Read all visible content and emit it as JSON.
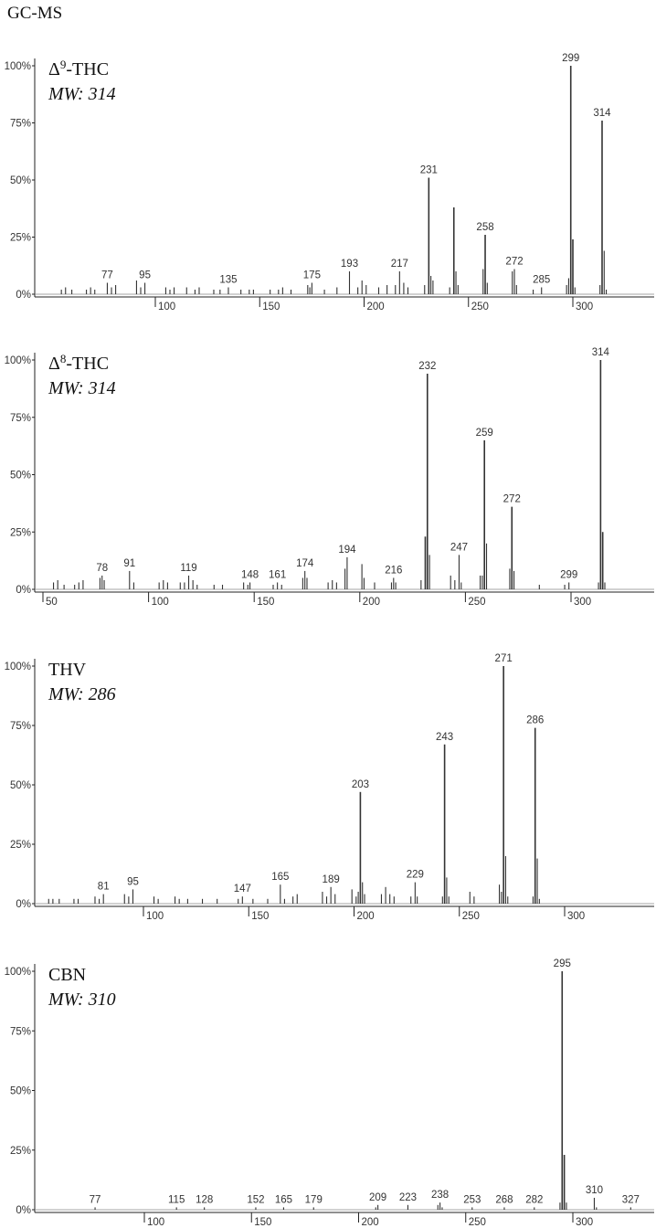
{
  "figure": {
    "title": "GC-MS"
  },
  "chart_data": [
    {
      "type": "bar",
      "compound": "Δ",
      "compound_sup": "9",
      "compound_rest": "-THC",
      "mw_label": "MW: 314",
      "ylim": [
        0,
        100
      ],
      "xlim": [
        40,
        340
      ],
      "y_ticks": [
        "0%",
        "25%",
        "50%",
        "75%",
        "100%"
      ],
      "x_ticks": [
        100,
        150,
        200,
        250,
        300
      ],
      "peaks": [
        {
          "mz": 55,
          "rel": 2
        },
        {
          "mz": 57,
          "rel": 3
        },
        {
          "mz": 60,
          "rel": 2
        },
        {
          "mz": 67,
          "rel": 2
        },
        {
          "mz": 69,
          "rel": 3
        },
        {
          "mz": 71,
          "rel": 2
        },
        {
          "mz": 77,
          "rel": 5
        },
        {
          "mz": 79,
          "rel": 3
        },
        {
          "mz": 81,
          "rel": 4
        },
        {
          "mz": 91,
          "rel": 6
        },
        {
          "mz": 93,
          "rel": 3
        },
        {
          "mz": 95,
          "rel": 5
        },
        {
          "mz": 105,
          "rel": 3
        },
        {
          "mz": 107,
          "rel": 2
        },
        {
          "mz": 109,
          "rel": 3
        },
        {
          "mz": 115,
          "rel": 3
        },
        {
          "mz": 119,
          "rel": 2
        },
        {
          "mz": 121,
          "rel": 3
        },
        {
          "mz": 128,
          "rel": 2
        },
        {
          "mz": 131,
          "rel": 2
        },
        {
          "mz": 135,
          "rel": 3
        },
        {
          "mz": 141,
          "rel": 2
        },
        {
          "mz": 145,
          "rel": 2
        },
        {
          "mz": 147,
          "rel": 2
        },
        {
          "mz": 155,
          "rel": 2
        },
        {
          "mz": 159,
          "rel": 2
        },
        {
          "mz": 161,
          "rel": 3
        },
        {
          "mz": 165,
          "rel": 2
        },
        {
          "mz": 173,
          "rel": 4
        },
        {
          "mz": 174,
          "rel": 3
        },
        {
          "mz": 175,
          "rel": 5
        },
        {
          "mz": 181,
          "rel": 2
        },
        {
          "mz": 187,
          "rel": 3
        },
        {
          "mz": 193,
          "rel": 10
        },
        {
          "mz": 197,
          "rel": 3
        },
        {
          "mz": 199,
          "rel": 6
        },
        {
          "mz": 201,
          "rel": 4
        },
        {
          "mz": 207,
          "rel": 3
        },
        {
          "mz": 211,
          "rel": 4
        },
        {
          "mz": 215,
          "rel": 4
        },
        {
          "mz": 217,
          "rel": 10
        },
        {
          "mz": 219,
          "rel": 5
        },
        {
          "mz": 221,
          "rel": 3
        },
        {
          "mz": 229,
          "rel": 4
        },
        {
          "mz": 231,
          "rel": 51
        },
        {
          "mz": 232,
          "rel": 8
        },
        {
          "mz": 233,
          "rel": 6
        },
        {
          "mz": 241,
          "rel": 3
        },
        {
          "mz": 243,
          "rel": 38
        },
        {
          "mz": 244,
          "rel": 10
        },
        {
          "mz": 245,
          "rel": 4
        },
        {
          "mz": 257,
          "rel": 11
        },
        {
          "mz": 258,
          "rel": 26
        },
        {
          "mz": 259,
          "rel": 5
        },
        {
          "mz": 271,
          "rel": 10
        },
        {
          "mz": 272,
          "rel": 11
        },
        {
          "mz": 273,
          "rel": 4
        },
        {
          "mz": 281,
          "rel": 2
        },
        {
          "mz": 285,
          "rel": 3
        },
        {
          "mz": 297,
          "rel": 4
        },
        {
          "mz": 298,
          "rel": 7
        },
        {
          "mz": 299,
          "rel": 100
        },
        {
          "mz": 300,
          "rel": 24
        },
        {
          "mz": 301,
          "rel": 3
        },
        {
          "mz": 313,
          "rel": 4
        },
        {
          "mz": 314,
          "rel": 76
        },
        {
          "mz": 315,
          "rel": 19
        },
        {
          "mz": 316,
          "rel": 2
        }
      ],
      "peak_labels": [
        {
          "mz": 77,
          "rel": 5,
          "text": "77"
        },
        {
          "mz": 95,
          "rel": 5,
          "text": "95"
        },
        {
          "mz": 135,
          "rel": 3,
          "text": "135"
        },
        {
          "mz": 175,
          "rel": 5,
          "text": "175"
        },
        {
          "mz": 193,
          "rel": 10,
          "text": "193"
        },
        {
          "mz": 217,
          "rel": 10,
          "text": "217"
        },
        {
          "mz": 231,
          "rel": 51,
          "text": "231"
        },
        {
          "mz": 258,
          "rel": 26,
          "text": "258"
        },
        {
          "mz": 272,
          "rel": 11,
          "text": "272"
        },
        {
          "mz": 285,
          "rel": 3,
          "text": "285"
        },
        {
          "mz": 299,
          "rel": 100,
          "text": "299"
        },
        {
          "mz": 314,
          "rel": 76,
          "text": "314"
        }
      ]
    },
    {
      "type": "bar",
      "compound": "Δ",
      "compound_sup": "8",
      "compound_rest": "-THC",
      "mw_label": "MW: 314",
      "ylim": [
        0,
        100
      ],
      "xlim": [
        45,
        340
      ],
      "y_ticks": [
        "0%",
        "25%",
        "50%",
        "75%",
        "100%"
      ],
      "x_ticks": [
        50,
        100,
        150,
        200,
        250,
        300
      ],
      "peaks": [
        {
          "mz": 55,
          "rel": 3
        },
        {
          "mz": 57,
          "rel": 4
        },
        {
          "mz": 60,
          "rel": 2
        },
        {
          "mz": 65,
          "rel": 2
        },
        {
          "mz": 67,
          "rel": 3
        },
        {
          "mz": 69,
          "rel": 4
        },
        {
          "mz": 77,
          "rel": 5
        },
        {
          "mz": 78,
          "rel": 6
        },
        {
          "mz": 79,
          "rel": 4
        },
        {
          "mz": 91,
          "rel": 8
        },
        {
          "mz": 93,
          "rel": 3
        },
        {
          "mz": 105,
          "rel": 3
        },
        {
          "mz": 107,
          "rel": 4
        },
        {
          "mz": 109,
          "rel": 3
        },
        {
          "mz": 115,
          "rel": 3
        },
        {
          "mz": 117,
          "rel": 3
        },
        {
          "mz": 119,
          "rel": 6
        },
        {
          "mz": 121,
          "rel": 4
        },
        {
          "mz": 123,
          "rel": 2
        },
        {
          "mz": 131,
          "rel": 2
        },
        {
          "mz": 135,
          "rel": 2
        },
        {
          "mz": 145,
          "rel": 3
        },
        {
          "mz": 147,
          "rel": 2
        },
        {
          "mz": 148,
          "rel": 3
        },
        {
          "mz": 159,
          "rel": 2
        },
        {
          "mz": 161,
          "rel": 3
        },
        {
          "mz": 163,
          "rel": 2
        },
        {
          "mz": 173,
          "rel": 5
        },
        {
          "mz": 174,
          "rel": 8
        },
        {
          "mz": 175,
          "rel": 5
        },
        {
          "mz": 185,
          "rel": 3
        },
        {
          "mz": 187,
          "rel": 4
        },
        {
          "mz": 189,
          "rel": 3
        },
        {
          "mz": 193,
          "rel": 9
        },
        {
          "mz": 194,
          "rel": 14
        },
        {
          "mz": 201,
          "rel": 11
        },
        {
          "mz": 202,
          "rel": 5
        },
        {
          "mz": 207,
          "rel": 3
        },
        {
          "mz": 215,
          "rel": 3
        },
        {
          "mz": 216,
          "rel": 5
        },
        {
          "mz": 217,
          "rel": 3
        },
        {
          "mz": 229,
          "rel": 4
        },
        {
          "mz": 231,
          "rel": 23
        },
        {
          "mz": 232,
          "rel": 94
        },
        {
          "mz": 233,
          "rel": 15
        },
        {
          "mz": 243,
          "rel": 6
        },
        {
          "mz": 245,
          "rel": 4
        },
        {
          "mz": 247,
          "rel": 15
        },
        {
          "mz": 248,
          "rel": 3
        },
        {
          "mz": 257,
          "rel": 6
        },
        {
          "mz": 258,
          "rel": 6
        },
        {
          "mz": 259,
          "rel": 65
        },
        {
          "mz": 260,
          "rel": 20
        },
        {
          "mz": 271,
          "rel": 9
        },
        {
          "mz": 272,
          "rel": 36
        },
        {
          "mz": 273,
          "rel": 8
        },
        {
          "mz": 285,
          "rel": 2
        },
        {
          "mz": 297,
          "rel": 2
        },
        {
          "mz": 299,
          "rel": 3
        },
        {
          "mz": 313,
          "rel": 3
        },
        {
          "mz": 314,
          "rel": 100
        },
        {
          "mz": 315,
          "rel": 25
        },
        {
          "mz": 316,
          "rel": 3
        }
      ],
      "peak_labels": [
        {
          "mz": 78,
          "rel": 6,
          "text": "78"
        },
        {
          "mz": 91,
          "rel": 8,
          "text": "91"
        },
        {
          "mz": 119,
          "rel": 6,
          "text": "119"
        },
        {
          "mz": 148,
          "rel": 3,
          "text": "148"
        },
        {
          "mz": 161,
          "rel": 3,
          "text": "161"
        },
        {
          "mz": 174,
          "rel": 8,
          "text": "174"
        },
        {
          "mz": 194,
          "rel": 14,
          "text": "194"
        },
        {
          "mz": 216,
          "rel": 5,
          "text": "216"
        },
        {
          "mz": 232,
          "rel": 94,
          "text": "232"
        },
        {
          "mz": 247,
          "rel": 15,
          "text": "247"
        },
        {
          "mz": 259,
          "rel": 65,
          "text": "259"
        },
        {
          "mz": 272,
          "rel": 36,
          "text": "272"
        },
        {
          "mz": 299,
          "rel": 3,
          "text": "299"
        },
        {
          "mz": 314,
          "rel": 100,
          "text": "314"
        }
      ]
    },
    {
      "type": "bar",
      "compound": "THV",
      "compound_sup": "",
      "compound_rest": "",
      "mw_label": "MW: 286",
      "ylim": [
        0,
        100
      ],
      "xlim": [
        40,
        340
      ],
      "y_ticks": [
        "0%",
        "25%",
        "50%",
        "75%",
        "100%"
      ],
      "x_ticks": [
        100,
        150,
        200,
        250,
        300
      ],
      "peaks": [
        {
          "mz": 55,
          "rel": 2
        },
        {
          "mz": 57,
          "rel": 2
        },
        {
          "mz": 60,
          "rel": 2
        },
        {
          "mz": 67,
          "rel": 2
        },
        {
          "mz": 69,
          "rel": 2
        },
        {
          "mz": 77,
          "rel": 3
        },
        {
          "mz": 79,
          "rel": 2
        },
        {
          "mz": 81,
          "rel": 4
        },
        {
          "mz": 91,
          "rel": 4
        },
        {
          "mz": 93,
          "rel": 3
        },
        {
          "mz": 95,
          "rel": 6
        },
        {
          "mz": 105,
          "rel": 3
        },
        {
          "mz": 107,
          "rel": 2
        },
        {
          "mz": 115,
          "rel": 3
        },
        {
          "mz": 117,
          "rel": 2
        },
        {
          "mz": 121,
          "rel": 2
        },
        {
          "mz": 128,
          "rel": 2
        },
        {
          "mz": 135,
          "rel": 2
        },
        {
          "mz": 145,
          "rel": 2
        },
        {
          "mz": 147,
          "rel": 3
        },
        {
          "mz": 152,
          "rel": 2
        },
        {
          "mz": 159,
          "rel": 2
        },
        {
          "mz": 165,
          "rel": 8
        },
        {
          "mz": 167,
          "rel": 2
        },
        {
          "mz": 171,
          "rel": 3
        },
        {
          "mz": 173,
          "rel": 4
        },
        {
          "mz": 185,
          "rel": 5
        },
        {
          "mz": 187,
          "rel": 3
        },
        {
          "mz": 189,
          "rel": 7
        },
        {
          "mz": 191,
          "rel": 4
        },
        {
          "mz": 199,
          "rel": 6
        },
        {
          "mz": 201,
          "rel": 3
        },
        {
          "mz": 202,
          "rel": 5
        },
        {
          "mz": 203,
          "rel": 47
        },
        {
          "mz": 204,
          "rel": 9
        },
        {
          "mz": 205,
          "rel": 4
        },
        {
          "mz": 213,
          "rel": 4
        },
        {
          "mz": 215,
          "rel": 7
        },
        {
          "mz": 217,
          "rel": 4
        },
        {
          "mz": 219,
          "rel": 3
        },
        {
          "mz": 227,
          "rel": 3
        },
        {
          "mz": 229,
          "rel": 9
        },
        {
          "mz": 230,
          "rel": 3
        },
        {
          "mz": 242,
          "rel": 3
        },
        {
          "mz": 243,
          "rel": 67
        },
        {
          "mz": 244,
          "rel": 11
        },
        {
          "mz": 245,
          "rel": 3
        },
        {
          "mz": 255,
          "rel": 5
        },
        {
          "mz": 257,
          "rel": 3
        },
        {
          "mz": 269,
          "rel": 8
        },
        {
          "mz": 270,
          "rel": 5
        },
        {
          "mz": 271,
          "rel": 100
        },
        {
          "mz": 272,
          "rel": 20
        },
        {
          "mz": 273,
          "rel": 3
        },
        {
          "mz": 285,
          "rel": 3
        },
        {
          "mz": 286,
          "rel": 74
        },
        {
          "mz": 287,
          "rel": 19
        },
        {
          "mz": 288,
          "rel": 2
        }
      ],
      "peak_labels": [
        {
          "mz": 81,
          "rel": 4,
          "text": "81"
        },
        {
          "mz": 95,
          "rel": 6,
          "text": "95"
        },
        {
          "mz": 147,
          "rel": 3,
          "text": "147"
        },
        {
          "mz": 165,
          "rel": 8,
          "text": "165"
        },
        {
          "mz": 189,
          "rel": 7,
          "text": "189"
        },
        {
          "mz": 203,
          "rel": 47,
          "text": "203"
        },
        {
          "mz": 229,
          "rel": 9,
          "text": "229"
        },
        {
          "mz": 243,
          "rel": 67,
          "text": "243"
        },
        {
          "mz": 271,
          "rel": 100,
          "text": "271"
        },
        {
          "mz": 286,
          "rel": 74,
          "text": "286"
        }
      ]
    },
    {
      "type": "bar",
      "compound": "CBN",
      "compound_sup": "",
      "compound_rest": "",
      "mw_label": "MW: 310",
      "ylim": [
        0,
        100
      ],
      "xlim": [
        40,
        340
      ],
      "y_ticks": [
        "0%",
        "25%",
        "50%",
        "75%",
        "100%"
      ],
      "x_ticks": [
        100,
        150,
        200,
        250,
        300
      ],
      "peaks": [
        {
          "mz": 77,
          "rel": 1
        },
        {
          "mz": 115,
          "rel": 1
        },
        {
          "mz": 128,
          "rel": 1
        },
        {
          "mz": 152,
          "rel": 1
        },
        {
          "mz": 165,
          "rel": 1
        },
        {
          "mz": 179,
          "rel": 1
        },
        {
          "mz": 208,
          "rel": 1
        },
        {
          "mz": 209,
          "rel": 2
        },
        {
          "mz": 223,
          "rel": 2
        },
        {
          "mz": 237,
          "rel": 2
        },
        {
          "mz": 238,
          "rel": 3
        },
        {
          "mz": 239,
          "rel": 1
        },
        {
          "mz": 253,
          "rel": 1
        },
        {
          "mz": 268,
          "rel": 1
        },
        {
          "mz": 282,
          "rel": 1
        },
        {
          "mz": 294,
          "rel": 3
        },
        {
          "mz": 295,
          "rel": 100
        },
        {
          "mz": 296,
          "rel": 23
        },
        {
          "mz": 297,
          "rel": 3
        },
        {
          "mz": 310,
          "rel": 5
        },
        {
          "mz": 311,
          "rel": 1
        },
        {
          "mz": 327,
          "rel": 1
        }
      ],
      "peak_labels": [
        {
          "mz": 77,
          "rel": 1,
          "text": "77"
        },
        {
          "mz": 115,
          "rel": 1,
          "text": "115"
        },
        {
          "mz": 128,
          "rel": 1,
          "text": "128"
        },
        {
          "mz": 152,
          "rel": 1,
          "text": "152"
        },
        {
          "mz": 165,
          "rel": 1,
          "text": "165"
        },
        {
          "mz": 179,
          "rel": 1,
          "text": "179"
        },
        {
          "mz": 209,
          "rel": 2,
          "text": "209"
        },
        {
          "mz": 223,
          "rel": 2,
          "text": "223"
        },
        {
          "mz": 238,
          "rel": 3,
          "text": "238"
        },
        {
          "mz": 253,
          "rel": 1,
          "text": "253"
        },
        {
          "mz": 268,
          "rel": 1,
          "text": "268"
        },
        {
          "mz": 282,
          "rel": 1,
          "text": "282"
        },
        {
          "mz": 295,
          "rel": 100,
          "text": "295"
        },
        {
          "mz": 310,
          "rel": 5,
          "text": "310"
        },
        {
          "mz": 327,
          "rel": 1,
          "text": "327"
        }
      ]
    }
  ]
}
